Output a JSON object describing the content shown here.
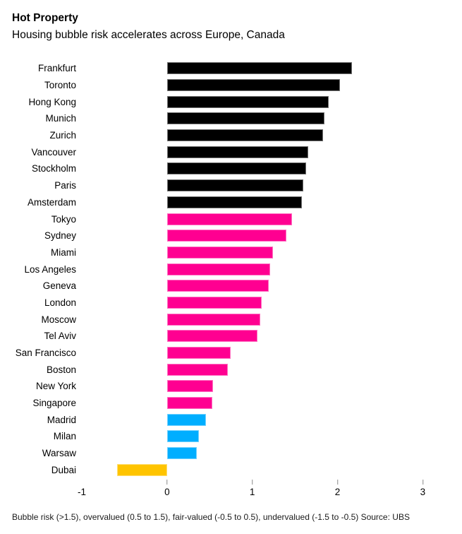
{
  "header": {
    "title": "Hot Property",
    "subtitle": "Housing bubble risk accelerates across Europe, Canada"
  },
  "chart_data": {
    "type": "bar",
    "orientation": "horizontal",
    "title": "Hot Property",
    "subtitle": "Housing bubble risk accelerates across Europe, Canada",
    "xlabel": "",
    "ylabel": "",
    "xlim": [
      -1,
      3.32
    ],
    "x_ticks": [
      -1,
      0,
      1,
      2,
      3
    ],
    "x_tick_marks": [
      0,
      1,
      2,
      3
    ],
    "grid": false,
    "legend_position": "none",
    "source": "UBS",
    "legend": {
      "bubble_risk": {
        "label": "Bubble risk (>1.5)",
        "color": "#000000"
      },
      "overvalued": {
        "label": "overvalued (0.5 to 1.5)",
        "color": "#ff0091"
      },
      "fair_valued": {
        "label": "fair-valued (-0.5 to 0.5)",
        "color": "#00aeff"
      },
      "undervalued": {
        "label": "undervalued (-1.5 to -0.5)",
        "color": "#ffc400"
      }
    },
    "categories": [
      "Frankfurt",
      "Toronto",
      "Hong Kong",
      "Munich",
      "Zurich",
      "Vancouver",
      "Stockholm",
      "Paris",
      "Amsterdam",
      "Tokyo",
      "Sydney",
      "Miami",
      "Los Angeles",
      "Geneva",
      "London",
      "Moscow",
      "Tel Aviv",
      "San Francisco",
      "Boston",
      "New York",
      "Singapore",
      "Madrid",
      "Milan",
      "Warsaw",
      "Dubai"
    ],
    "values": [
      2.17,
      2.03,
      1.9,
      1.85,
      1.83,
      1.66,
      1.63,
      1.6,
      1.58,
      1.47,
      1.4,
      1.24,
      1.21,
      1.19,
      1.11,
      1.09,
      1.06,
      0.75,
      0.71,
      0.54,
      0.53,
      0.46,
      0.37,
      0.35,
      -0.59
    ],
    "color_keys": [
      "bubble_risk",
      "bubble_risk",
      "bubble_risk",
      "bubble_risk",
      "bubble_risk",
      "bubble_risk",
      "bubble_risk",
      "bubble_risk",
      "bubble_risk",
      "overvalued",
      "overvalued",
      "overvalued",
      "overvalued",
      "overvalued",
      "overvalued",
      "overvalued",
      "overvalued",
      "overvalued",
      "overvalued",
      "overvalued",
      "overvalued",
      "fair_valued",
      "fair_valued",
      "fair_valued",
      "undervalued"
    ]
  },
  "footer": {
    "note": "Bubble risk (>1.5), overvalued (0.5 to 1.5), fair-valued (-0.5 to 0.5), undervalued (-1.5 to -0.5) Source: UBS"
  }
}
